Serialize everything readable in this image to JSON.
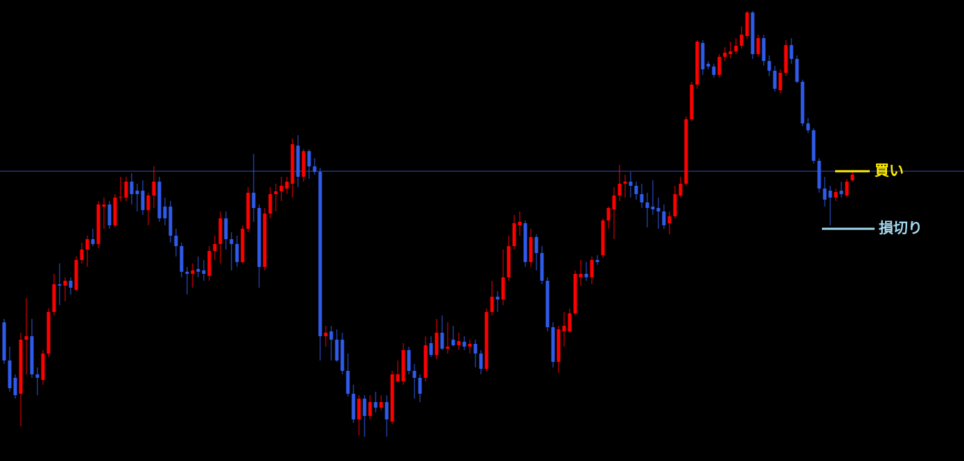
{
  "chart_data": {
    "type": "candlestick",
    "up_color": "#ff0000",
    "down_color": "#2f5bea",
    "ylim": [
      0,
      665
    ],
    "open": [
      200,
      145,
      120,
      97,
      175,
      180,
      125,
      117,
      155,
      215,
      255,
      253,
      260,
      247,
      290,
      305,
      320,
      313,
      367,
      370,
      340,
      380,
      380,
      403,
      390,
      390,
      362,
      383,
      403,
      367,
      367,
      325,
      310,
      273,
      270,
      277,
      275,
      267,
      303,
      313,
      350,
      320,
      313,
      287,
      335,
      387,
      365,
      280,
      357,
      385,
      389,
      393,
      400,
      455,
      410,
      447,
      425,
      417,
      180,
      187,
      175,
      175,
      130,
      97,
      60,
      90,
      65,
      85,
      77,
      85,
      57,
      115,
      115,
      160,
      130,
      120,
      120,
      170,
      153,
      185,
      162,
      175,
      167,
      172,
      165,
      169,
      155,
      133,
      215,
      237,
      233,
      265,
      310,
      340,
      343,
      287,
      323,
      300,
      260,
      193,
      143,
      187,
      187,
      213,
      265,
      270,
      265,
      290,
      297,
      347,
      363,
      383,
      400,
      403,
      397,
      385,
      373,
      367,
      365,
      360,
      343,
      353,
      383,
      400,
      493,
      543,
      603,
      573,
      569,
      557,
      583,
      587,
      591,
      599,
      613,
      647,
      587,
      610,
      577,
      563,
      535,
      560,
      600,
      580,
      547,
      487,
      477,
      433,
      393,
      390,
      380,
      390,
      383,
      405
    ],
    "high": [
      205,
      165,
      125,
      185,
      235,
      205,
      135,
      160,
      220,
      270,
      285,
      265,
      265,
      295,
      315,
      325,
      335,
      375,
      380,
      375,
      385,
      410,
      410,
      415,
      400,
      405,
      387,
      425,
      410,
      380,
      375,
      335,
      315,
      280,
      285,
      295,
      290,
      310,
      325,
      360,
      360,
      330,
      325,
      340,
      395,
      443,
      370,
      365,
      395,
      400,
      410,
      410,
      465,
      470,
      450,
      450,
      437,
      423,
      195,
      195,
      190,
      185,
      155,
      110,
      95,
      95,
      95,
      100,
      95,
      95,
      130,
      145,
      170,
      165,
      140,
      125,
      180,
      180,
      205,
      210,
      200,
      195,
      185,
      180,
      175,
      175,
      160,
      220,
      260,
      245,
      305,
      325,
      355,
      360,
      347,
      335,
      327,
      310,
      265,
      200,
      195,
      215,
      220,
      275,
      290,
      287,
      295,
      297,
      350,
      367,
      395,
      427,
      413,
      417,
      403,
      400,
      387,
      405,
      380,
      370,
      360,
      397,
      410,
      497,
      547,
      607,
      607,
      577,
      573,
      587,
      597,
      605,
      610,
      627,
      649,
      649,
      615,
      615,
      585,
      570,
      565,
      607,
      610,
      585,
      550,
      495,
      480,
      437,
      410,
      397,
      393,
      403,
      407,
      417
    ],
    "low": [
      140,
      100,
      90,
      50,
      125,
      120,
      95,
      110,
      150,
      210,
      225,
      230,
      240,
      245,
      285,
      280,
      310,
      307,
      335,
      335,
      337,
      375,
      375,
      370,
      360,
      355,
      340,
      365,
      345,
      340,
      315,
      295,
      265,
      240,
      250,
      265,
      260,
      260,
      290,
      285,
      305,
      275,
      280,
      285,
      330,
      345,
      250,
      275,
      350,
      360,
      375,
      385,
      380,
      395,
      403,
      407,
      413,
      145,
      165,
      145,
      143,
      125,
      93,
      55,
      37,
      35,
      60,
      70,
      73,
      35,
      53,
      113,
      110,
      125,
      90,
      85,
      115,
      150,
      147,
      160,
      155,
      165,
      160,
      160,
      155,
      135,
      125,
      130,
      210,
      215,
      225,
      260,
      305,
      325,
      280,
      280,
      275,
      255,
      187,
      135,
      127,
      165,
      185,
      210,
      253,
      260,
      255,
      283,
      293,
      335,
      320,
      375,
      380,
      380,
      377,
      365,
      337,
      355,
      335,
      335,
      327,
      350,
      380,
      397,
      490,
      537,
      557,
      565,
      553,
      553,
      577,
      581,
      587,
      595,
      609,
      580,
      583,
      570,
      555,
      533,
      530,
      555,
      573,
      545,
      483,
      473,
      429,
      387,
      367,
      340,
      375,
      380,
      380,
      403
    ],
    "close": [
      145,
      105,
      95,
      175,
      180,
      125,
      120,
      155,
      215,
      255,
      253,
      260,
      250,
      290,
      305,
      320,
      313,
      370,
      370,
      340,
      380,
      381,
      403,
      385,
      385,
      362,
      383,
      403,
      350,
      350,
      325,
      310,
      273,
      270,
      275,
      273,
      270,
      303,
      313,
      350,
      320,
      313,
      287,
      335,
      387,
      365,
      280,
      357,
      385,
      389,
      397,
      403,
      457,
      410,
      447,
      425,
      417,
      180,
      185,
      175,
      145,
      130,
      97,
      60,
      90,
      65,
      85,
      77,
      85,
      60,
      125,
      125,
      160,
      130,
      120,
      97,
      167,
      153,
      185,
      162,
      165,
      167,
      173,
      165,
      169,
      155,
      133,
      215,
      237,
      233,
      265,
      310,
      343,
      345,
      287,
      323,
      300,
      260,
      193,
      143,
      190,
      195,
      213,
      270,
      270,
      265,
      290,
      287,
      347,
      365,
      383,
      400,
      403,
      397,
      385,
      373,
      365,
      363,
      360,
      340,
      353,
      385,
      400,
      493,
      543,
      605,
      565,
      569,
      557,
      583,
      589,
      591,
      599,
      615,
      647,
      587,
      610,
      577,
      563,
      537,
      560,
      600,
      580,
      547,
      487,
      477,
      433,
      393,
      377,
      380,
      388,
      385,
      403,
      413
    ],
    "reference_line": {
      "value": 418,
      "color": "#3a4fb8"
    },
    "annotations": [
      {
        "text": "買い",
        "value": 418,
        "color": "#ffee00"
      },
      {
        "text": "損切り",
        "value": 335,
        "color": "#a4d8ee"
      }
    ]
  }
}
